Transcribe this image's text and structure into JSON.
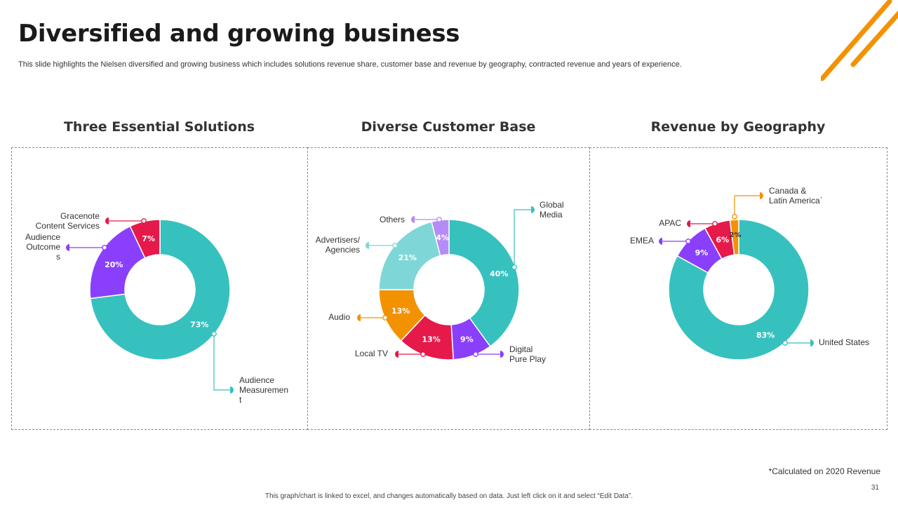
{
  "slide": {
    "title": "Diversified and growing business",
    "subtitle": "This slide highlights the Nielsen diversified and growing business which includes solutions revenue share, customer base and revenue by geography, contracted revenue and years of experience.",
    "footnote": "*Calculated on 2020 Revenue",
    "page_number": "31",
    "bottom_note": "This graph/chart is linked to excel, and changes automatically based on data. Just left click on it and select “Edit Data”."
  },
  "colors": {
    "teal": "#36c1bf",
    "purple": "#8a3ffc",
    "crimson": "#e5194a",
    "orange": "#f39200",
    "light_teal": "#7ed7d6",
    "lavender": "#b58cf7",
    "accent": "#f39200"
  },
  "chart_data": [
    {
      "type": "pie",
      "title": "Three Essential Solutions",
      "slices": [
        {
          "label": "Audience Measurement",
          "value": 73,
          "display": "73%",
          "color": "#36c1bf"
        },
        {
          "label": "Audience Outcomes",
          "value": 20,
          "display": "20%",
          "color": "#8a3ffc"
        },
        {
          "label": "Gracenote Content Services",
          "value": 7,
          "display": "7%",
          "color": "#e5194a"
        }
      ]
    },
    {
      "type": "pie",
      "title": "Diverse Customer Base",
      "slices": [
        {
          "label": "Global Media",
          "value": 40,
          "display": "40%",
          "color": "#36c1bf"
        },
        {
          "label": "Digital Pure Play",
          "value": 9,
          "display": "9%",
          "color": "#8a3ffc"
        },
        {
          "label": "Local TV",
          "value": 13,
          "display": "13%",
          "color": "#e5194a"
        },
        {
          "label": "Audio",
          "value": 13,
          "display": "13%",
          "color": "#f39200"
        },
        {
          "label": "Advertisers/ Agencies",
          "value": 21,
          "display": "21%",
          "color": "#7ed7d6"
        },
        {
          "label": "Others",
          "value": 4,
          "display": "4%",
          "color": "#b58cf7"
        }
      ]
    },
    {
      "type": "pie",
      "title": "Revenue by Geography",
      "slices": [
        {
          "label": "United States",
          "value": 83,
          "display": "83%",
          "color": "#36c1bf"
        },
        {
          "label": "EMEA",
          "value": 9,
          "display": "9%",
          "color": "#8a3ffc"
        },
        {
          "label": "APAC",
          "value": 6,
          "display": "6%",
          "color": "#e5194a"
        },
        {
          "label": "Canada & Latin America`",
          "value": 2,
          "display": "2%",
          "color": "#f39200"
        }
      ]
    }
  ]
}
